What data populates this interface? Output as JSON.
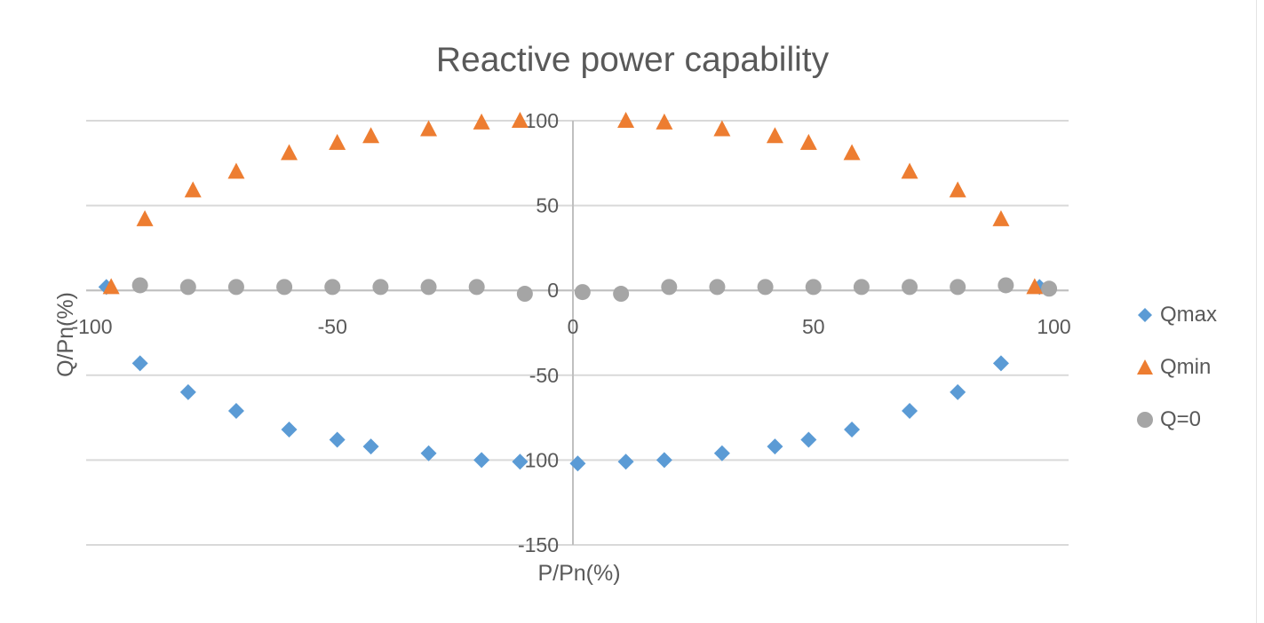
{
  "chart_data": {
    "type": "scatter",
    "title": "Reactive power capability",
    "xlabel": "P/Pn(%)",
    "ylabel": "Q/Pn(%)",
    "xlim": [
      -100,
      100
    ],
    "ylim": [
      -150,
      100
    ],
    "x_ticks": [
      -100,
      -50,
      0,
      50,
      100
    ],
    "y_ticks": [
      100,
      50,
      0,
      -50,
      -100,
      -150
    ],
    "grid": "horizontal",
    "legend_position": "right",
    "series": [
      {
        "name": "Qmax",
        "color": "#5b9bd5",
        "marker": "diamond",
        "points": [
          [
            -97,
            2
          ],
          [
            -90,
            -43
          ],
          [
            -80,
            -60
          ],
          [
            -70,
            -71
          ],
          [
            -59,
            -82
          ],
          [
            -49,
            -88
          ],
          [
            -42,
            -92
          ],
          [
            -30,
            -96
          ],
          [
            -19,
            -100
          ],
          [
            -11,
            -101
          ],
          [
            1,
            -102
          ],
          [
            11,
            -101
          ],
          [
            19,
            -100
          ],
          [
            31,
            -96
          ],
          [
            42,
            -92
          ],
          [
            49,
            -88
          ],
          [
            58,
            -82
          ],
          [
            70,
            -71
          ],
          [
            80,
            -60
          ],
          [
            89,
            -43
          ],
          [
            97,
            2
          ]
        ]
      },
      {
        "name": "Qmin",
        "color": "#ed7d31",
        "marker": "triangle",
        "points": [
          [
            -96,
            2
          ],
          [
            -89,
            42
          ],
          [
            -79,
            59
          ],
          [
            -70,
            70
          ],
          [
            -59,
            81
          ],
          [
            -49,
            87
          ],
          [
            -42,
            91
          ],
          [
            -30,
            95
          ],
          [
            -19,
            99
          ],
          [
            -11,
            100
          ],
          [
            11,
            100
          ],
          [
            19,
            99
          ],
          [
            31,
            95
          ],
          [
            42,
            91
          ],
          [
            49,
            87
          ],
          [
            58,
            81
          ],
          [
            70,
            70
          ],
          [
            80,
            59
          ],
          [
            89,
            42
          ],
          [
            96,
            2
          ]
        ]
      },
      {
        "name": "Q=0",
        "color": "#a5a5a5",
        "marker": "circle",
        "points": [
          [
            -90,
            3
          ],
          [
            -80,
            2
          ],
          [
            -70,
            2
          ],
          [
            -60,
            2
          ],
          [
            -50,
            2
          ],
          [
            -40,
            2
          ],
          [
            -30,
            2
          ],
          [
            -20,
            2
          ],
          [
            -10,
            -2
          ],
          [
            2,
            -1
          ],
          [
            10,
            -2
          ],
          [
            20,
            2
          ],
          [
            30,
            2
          ],
          [
            40,
            2
          ],
          [
            50,
            2
          ],
          [
            60,
            2
          ],
          [
            70,
            2
          ],
          [
            80,
            2
          ],
          [
            90,
            3
          ],
          [
            99,
            1
          ]
        ]
      }
    ]
  }
}
